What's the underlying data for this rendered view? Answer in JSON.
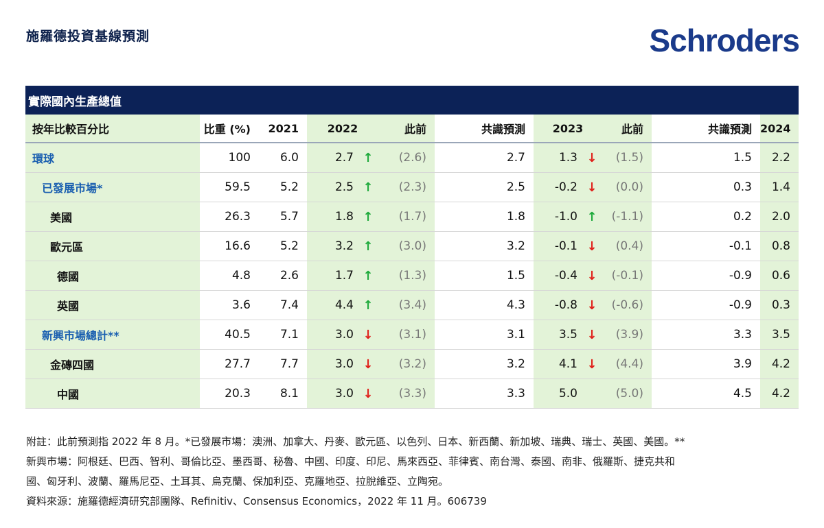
{
  "page_title": "施羅德投資基線預測",
  "logo_text": "Schroders",
  "table": {
    "title": "實際國內生產總值",
    "columns": {
      "label": "按年比較百分比",
      "weight": "比重 (%)",
      "y2021": "2021",
      "y2022": "2022",
      "prev2022": "此前",
      "cons2022": "共識預測",
      "y2023": "2023",
      "prev2023": "此前",
      "cons2023": "共識預測",
      "y2024": "2024"
    },
    "rows": [
      {
        "name": "環球",
        "weight": "100",
        "y2021": "6.0",
        "y2022": "2.7",
        "a2022": "up",
        "prev2022": "(2.6)",
        "cons2022": "2.7",
        "y2023": "1.3",
        "a2023": "down",
        "prev2023": "(1.5)",
        "cons2023": "1.5",
        "y2024": "2.2"
      },
      {
        "name": "已發展市場*",
        "weight": "59.5",
        "y2021": "5.2",
        "y2022": "2.5",
        "a2022": "up",
        "prev2022": "(2.3)",
        "cons2022": "2.5",
        "y2023": "-0.2",
        "a2023": "down",
        "prev2023": "(0.0)",
        "cons2023": "0.3",
        "y2024": "1.4"
      },
      {
        "name": "美國",
        "weight": "26.3",
        "y2021": "5.7",
        "y2022": "1.8",
        "a2022": "up",
        "prev2022": "(1.7)",
        "cons2022": "1.8",
        "y2023": "-1.0",
        "a2023": "up",
        "prev2023": "(-1.1)",
        "cons2023": "0.2",
        "y2024": "2.0"
      },
      {
        "name": "歐元區",
        "weight": "16.6",
        "y2021": "5.2",
        "y2022": "3.2",
        "a2022": "up",
        "prev2022": "(3.0)",
        "cons2022": "3.2",
        "y2023": "-0.1",
        "a2023": "down",
        "prev2023": "(0.4)",
        "cons2023": "-0.1",
        "y2024": "0.8"
      },
      {
        "name": "德國",
        "weight": "4.8",
        "y2021": "2.6",
        "y2022": "1.7",
        "a2022": "up",
        "prev2022": "(1.3)",
        "cons2022": "1.5",
        "y2023": "-0.4",
        "a2023": "down",
        "prev2023": "(-0.1)",
        "cons2023": "-0.9",
        "y2024": "0.6"
      },
      {
        "name": "英國",
        "weight": "3.6",
        "y2021": "7.4",
        "y2022": "4.4",
        "a2022": "up",
        "prev2022": "(3.4)",
        "cons2022": "4.3",
        "y2023": "-0.8",
        "a2023": "down",
        "prev2023": "(-0.6)",
        "cons2023": "-0.9",
        "y2024": "0.3"
      },
      {
        "name": "新興市場總計**",
        "weight": "40.5",
        "y2021": "7.1",
        "y2022": "3.0",
        "a2022": "down",
        "prev2022": "(3.1)",
        "cons2022": "3.1",
        "y2023": "3.5",
        "a2023": "down",
        "prev2023": "(3.9)",
        "cons2023": "3.3",
        "y2024": "3.5"
      },
      {
        "name": "金磚四國",
        "weight": "27.7",
        "y2021": "7.7",
        "y2022": "3.0",
        "a2022": "down",
        "prev2022": "(3.2)",
        "cons2022": "3.2",
        "y2023": "4.1",
        "a2023": "down",
        "prev2023": "(4.4)",
        "cons2023": "3.9",
        "y2024": "4.2"
      },
      {
        "name": "中國",
        "weight": "20.3",
        "y2021": "8.1",
        "y2022": "3.0",
        "a2022": "down",
        "prev2022": "(3.3)",
        "cons2022": "3.3",
        "y2023": "5.0",
        "a2023": "none",
        "prev2023": "(5.0)",
        "cons2023": "4.5",
        "y2024": "4.2"
      }
    ]
  },
  "arrow_symbols": {
    "up": "↑",
    "down": "↓",
    "none": ""
  },
  "colors": {
    "header_bg": "#0c2257",
    "green_band": "#e3f3d8",
    "up": "#1faa3c",
    "down": "#e0221c",
    "link_blue": "#1a5fb0"
  },
  "notes": {
    "line1": "附註：此前預測指 2022 年 8 月。*已發展市場：澳洲、加拿大、丹麥、歐元區、以色列、日本、新西蘭、新加坡、瑞典、瑞士、英國、美國。**",
    "line2": "新興市場：阿根廷、巴西、智利、哥倫比亞、墨西哥、秘魯、中國、印度、印尼、馬來西亞、菲律賓、南台灣、泰國、南非、俄羅斯、捷克共和",
    "line3": "國、匈牙利、波蘭、羅馬尼亞、土耳其、烏克蘭、保加利亞、克羅地亞、拉脫維亞、立陶宛。",
    "line4": "資料來源：施羅德經濟研究部團隊、Refinitiv、Consensus Economics，2022 年 11 月。606739"
  }
}
